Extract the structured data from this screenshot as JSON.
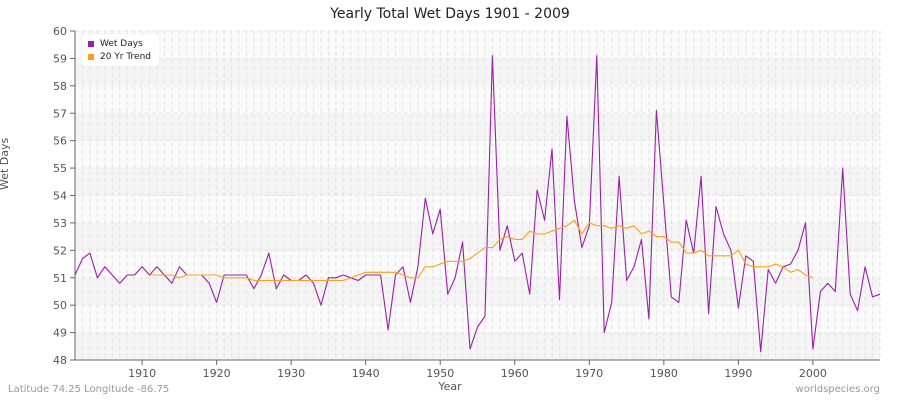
{
  "title": "Yearly Total Wet Days 1901 - 2009",
  "footer": {
    "location": "Latitude 74.25 Longitude -86.75",
    "source": "worldspecies.org"
  },
  "legend": [
    {
      "label": "Wet Days",
      "color": "#9b1fa8"
    },
    {
      "label": "20 Yr Trend",
      "color": "#ff9f1a"
    }
  ],
  "chart_data": {
    "type": "line",
    "title": "Yearly Total Wet Days 1901 - 2009",
    "xlabel": "Year",
    "ylabel": "Wet Days",
    "xlim": [
      1901,
      2009
    ],
    "ylim": [
      48,
      60
    ],
    "xticks": [
      1910,
      1920,
      1930,
      1940,
      1950,
      1960,
      1970,
      1980,
      1990,
      2000
    ],
    "yticks": [
      48,
      49,
      50,
      51,
      52,
      53,
      54,
      55,
      56,
      57,
      58,
      59,
      60
    ],
    "grid": true,
    "legend_position": "top-left",
    "series": [
      {
        "name": "Wet Days",
        "color": "#9b1fa8",
        "x_start": 1901,
        "values": [
          51.1,
          51.7,
          51.9,
          51.0,
          51.4,
          51.1,
          50.8,
          51.1,
          51.1,
          51.4,
          51.1,
          51.4,
          51.1,
          50.8,
          51.4,
          51.1,
          51.1,
          51.1,
          50.8,
          50.1,
          51.1,
          51.1,
          51.1,
          51.1,
          50.6,
          51.1,
          51.9,
          50.6,
          51.1,
          50.9,
          50.9,
          51.1,
          50.8,
          50.0,
          51.0,
          51.0,
          51.1,
          51.0,
          50.9,
          51.1,
          51.1,
          51.1,
          49.1,
          51.1,
          51.4,
          50.1,
          51.4,
          53.9,
          52.6,
          53.5,
          50.4,
          51.0,
          52.3,
          48.4,
          49.2,
          49.6,
          59.1,
          52.0,
          52.9,
          51.6,
          51.9,
          50.4,
          54.2,
          53.1,
          55.7,
          50.2,
          56.9,
          53.8,
          52.1,
          52.9,
          59.1,
          49.0,
          50.1,
          54.7,
          50.9,
          51.4,
          52.4,
          49.5,
          57.1,
          53.7,
          50.3,
          50.1,
          53.1,
          51.9,
          54.7,
          49.7,
          53.6,
          52.6,
          52.0,
          49.9,
          51.8,
          51.6,
          48.3,
          51.3,
          50.8,
          51.4,
          51.5,
          52.0,
          53.0,
          48.4,
          50.5,
          50.8,
          50.5,
          55.0,
          50.4,
          49.8,
          51.4,
          50.3,
          50.4
        ]
      },
      {
        "name": "20 Yr Trend",
        "color": "#ff9f1a",
        "x_start": 1911,
        "values": [
          51.1,
          51.1,
          51.1,
          51.1,
          51.0,
          51.1,
          51.1,
          51.1,
          51.1,
          51.1,
          51.0,
          51.0,
          51.0,
          51.0,
          50.9,
          50.9,
          50.9,
          50.9,
          50.9,
          50.9,
          50.9,
          50.9,
          50.9,
          50.9,
          50.9,
          50.9,
          50.9,
          51.0,
          51.1,
          51.2,
          51.2,
          51.2,
          51.2,
          51.2,
          51.1,
          51.0,
          51.0,
          51.4,
          51.4,
          51.5,
          51.6,
          51.6,
          51.6,
          51.7,
          51.9,
          52.1,
          52.1,
          52.4,
          52.5,
          52.4,
          52.4,
          52.7,
          52.6,
          52.6,
          52.7,
          52.8,
          52.9,
          53.1,
          52.6,
          53.0,
          52.9,
          52.9,
          52.8,
          52.9,
          52.8,
          52.9,
          52.6,
          52.7,
          52.5,
          52.5,
          52.3,
          52.3,
          51.9,
          51.9,
          52.0,
          51.8,
          51.8,
          51.8,
          51.8,
          52.0,
          51.5,
          51.4,
          51.4,
          51.4,
          51.5,
          51.4,
          51.2,
          51.3,
          51.1,
          51.0
        ]
      }
    ]
  }
}
